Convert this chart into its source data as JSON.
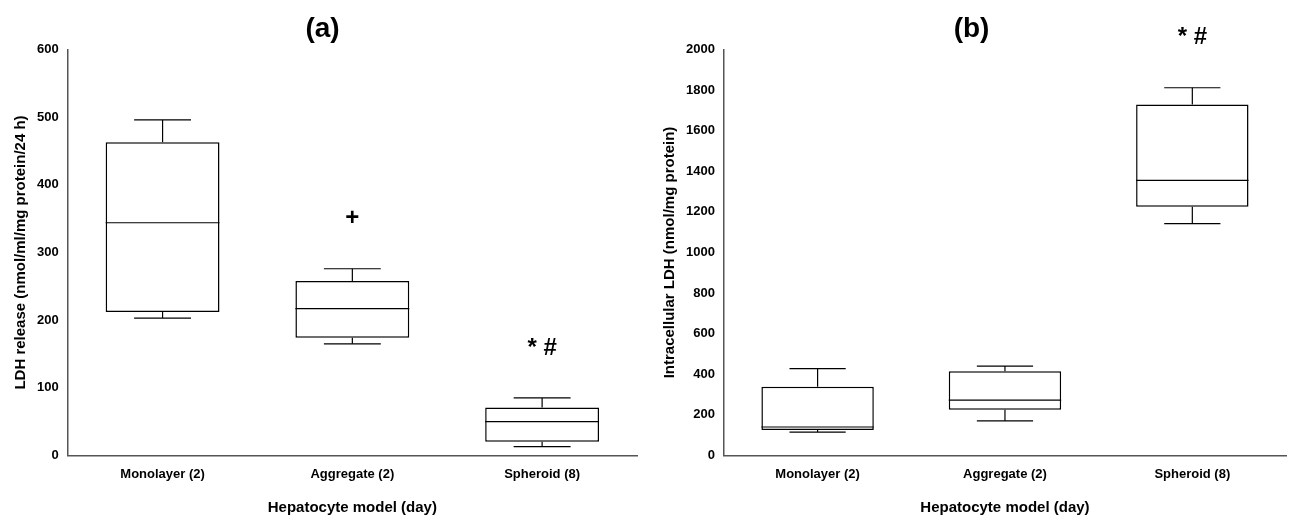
{
  "chart_data": [
    {
      "type": "box",
      "title": "(a)",
      "xlabel": "Hepatocyte model (day)",
      "ylabel": "LDH release (nmol/ml/mg protein/24 h)",
      "categories": [
        "Monolayer (2)",
        "Aggregate (2)",
        "Spheroid (8)"
      ],
      "boxes": [
        {
          "low": 203,
          "q1": 212,
          "median": 344,
          "q3": 463,
          "high": 496
        },
        {
          "low": 165,
          "q1": 174,
          "median": 217,
          "q3": 258,
          "high": 276
        },
        {
          "low": 13,
          "q1": 20,
          "median": 50,
          "q3": 71,
          "high": 85
        }
      ],
      "ylim": [
        0,
        600
      ],
      "yticks": [
        0,
        100,
        200,
        300,
        400,
        500,
        600
      ],
      "grid": false,
      "annotations": [
        "+",
        "* #"
      ]
    },
    {
      "type": "box",
      "title": "(b)",
      "xlabel": "Hepatocyte model (day)",
      "ylabel": "Intracellular LDH (nmol/mg protein)",
      "categories": [
        "Monolayer (2)",
        "Aggregate (2)",
        "Spheroid (8)"
      ],
      "boxes": [
        {
          "low": 115,
          "q1": 125,
          "median": 140,
          "q3": 338,
          "high": 428
        },
        {
          "low": 170,
          "q1": 225,
          "median": 272,
          "q3": 415,
          "high": 440
        },
        {
          "low": 1142,
          "q1": 1225,
          "median": 1355,
          "q3": 1730,
          "high": 1812
        }
      ],
      "ylim": [
        0,
        2000
      ],
      "yticks": [
        0,
        200,
        400,
        600,
        800,
        1000,
        1200,
        1400,
        1600,
        1800,
        2000
      ],
      "grid": false,
      "annotations": [
        "* #"
      ]
    }
  ]
}
